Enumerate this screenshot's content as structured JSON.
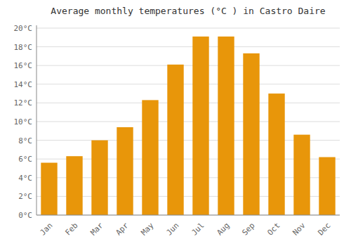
{
  "chart_data": {
    "type": "bar",
    "title": "Average monthly temperatures (°C ) in Castro Daire",
    "categories": [
      "Jan",
      "Feb",
      "Mar",
      "Apr",
      "May",
      "Jun",
      "Jul",
      "Aug",
      "Sep",
      "Oct",
      "Nov",
      "Dec"
    ],
    "values": [
      5.6,
      6.3,
      8.0,
      9.4,
      12.3,
      16.1,
      19.1,
      19.1,
      17.3,
      13.0,
      8.6,
      6.2
    ],
    "color": "#E8960A",
    "ylim": [
      0,
      20.3
    ],
    "yticks": [
      {
        "value": 0,
        "label": "0°C"
      },
      {
        "value": 2,
        "label": "2°C"
      },
      {
        "value": 4,
        "label": "4°C"
      },
      {
        "value": 6,
        "label": "6°C"
      },
      {
        "value": 8,
        "label": "8°C"
      },
      {
        "value": 10,
        "label": "10°C"
      },
      {
        "value": 12,
        "label": "12°C"
      },
      {
        "value": 14,
        "label": "14°C"
      },
      {
        "value": 16,
        "label": "16°C"
      },
      {
        "value": 18,
        "label": "18°C"
      },
      {
        "value": 20,
        "label": "20°C"
      }
    ],
    "grid": true
  }
}
